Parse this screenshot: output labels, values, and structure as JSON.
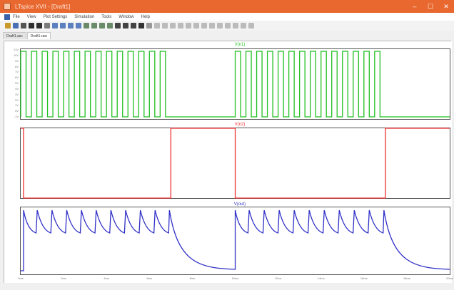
{
  "window": {
    "title": "LTspice XVII - [Draft1]"
  },
  "menubar": {
    "items": [
      {
        "label": "File"
      },
      {
        "label": "View"
      },
      {
        "label": "Plot Settings"
      },
      {
        "label": "Simulation"
      },
      {
        "label": "Tools"
      },
      {
        "label": "Window"
      },
      {
        "label": "Help"
      }
    ]
  },
  "tabs": [
    {
      "label": "Draft1.asc",
      "active": false
    },
    {
      "label": "Draft1.raw",
      "active": true
    }
  ],
  "panes": [
    {
      "title": "V(n1)",
      "color": "#22c022",
      "yticks": [
        "11V",
        "10V",
        "9V",
        "8V",
        "7V",
        "6V",
        "5V",
        "4V",
        "3V",
        "2V",
        "1V",
        "0V",
        "-1V"
      ]
    },
    {
      "title": "V(n2)",
      "color": "#ee3030",
      "yticks": [
        "",
        "",
        "",
        "",
        "",
        "",
        "",
        "",
        "",
        "",
        "",
        "",
        ""
      ]
    },
    {
      "title": "V(out)",
      "color": "#3030c8",
      "yticks": [
        "",
        "",
        "",
        "",
        "",
        "",
        "",
        "",
        "",
        "",
        "",
        "",
        ""
      ]
    }
  ],
  "xaxis": {
    "ticks": [
      "0ms",
      "2ms",
      "4ms",
      "6ms",
      "8ms",
      "10ms",
      "12ms",
      "14ms",
      "16ms",
      "18ms",
      "20ms"
    ]
  },
  "status": {
    "text": ""
  },
  "chart_data": {
    "type": "line",
    "x_unit": "ms",
    "xlim": [
      0,
      20
    ],
    "series": [
      {
        "name": "V(n1)",
        "shape": "pulse train",
        "bursts": [
          [
            0,
            7
          ],
          [
            10,
            17
          ]
        ],
        "pulse_period_ms": 0.5,
        "ylim": [
          0,
          11
        ]
      },
      {
        "name": "V(n2)",
        "shape": "square",
        "low_intervals": [
          [
            0,
            7
          ],
          [
            10,
            17
          ]
        ],
        "high_intervals": [
          [
            7,
            10
          ],
          [
            17,
            20
          ]
        ]
      },
      {
        "name": "V(out)",
        "shape": "sawtooth with decay",
        "sawtooth_intervals": [
          [
            0,
            7
          ],
          [
            10,
            17
          ]
        ],
        "teeth_per_burst": 10,
        "decay_intervals": [
          [
            7,
            10
          ],
          [
            17,
            20
          ]
        ]
      }
    ]
  }
}
